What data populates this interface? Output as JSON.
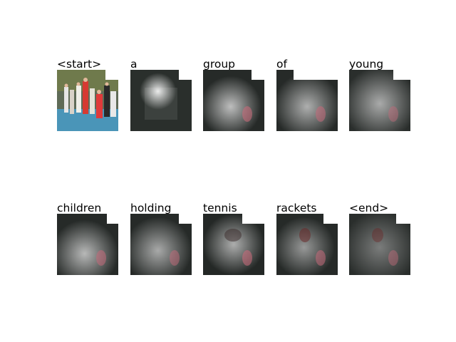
{
  "figure": {
    "panels": [
      {
        "word": "<start>",
        "view": "original"
      },
      {
        "word": "a",
        "view": "attention",
        "focus": "center-left"
      },
      {
        "word": "group",
        "view": "attention",
        "focus": "wide"
      },
      {
        "word": "of",
        "view": "attention",
        "focus": "wide"
      },
      {
        "word": "young",
        "view": "attention",
        "focus": "wide"
      },
      {
        "word": "children",
        "view": "attention",
        "focus": "wide"
      },
      {
        "word": "holding",
        "view": "attention",
        "focus": "wide"
      },
      {
        "word": "tennis",
        "view": "attention",
        "focus": "center"
      },
      {
        "word": "rackets",
        "view": "attention",
        "focus": "center"
      },
      {
        "word": "<end>",
        "view": "attention",
        "focus": "diffuse"
      }
    ]
  }
}
